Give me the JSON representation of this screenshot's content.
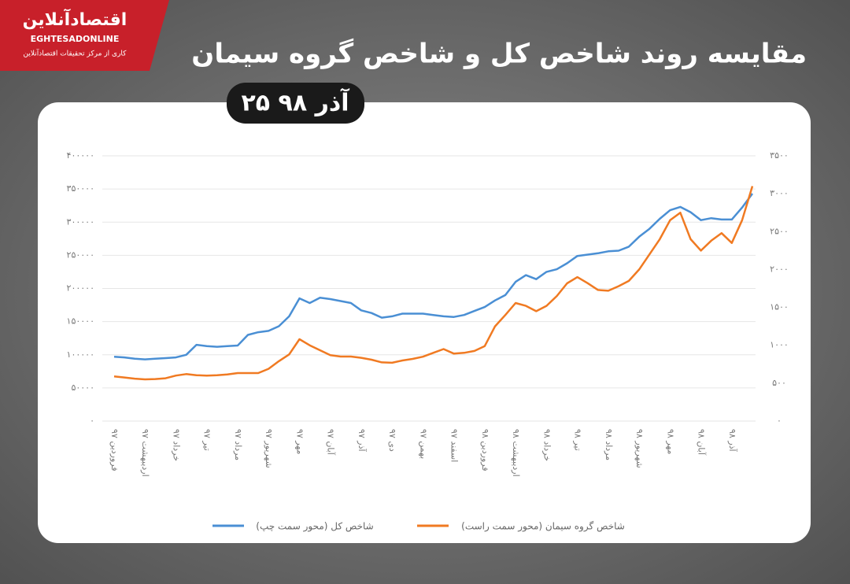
{
  "header": {
    "logo": "اقتصادآنلاین",
    "logo_latin": "EGHTESADONLINE",
    "tagline": "کاری از مرکز تحقیقات اقتصادآنلاین"
  },
  "chart_data": {
    "type": "line",
    "title": "مقایسه روند شاخص کل و شاخص گروه سیمان",
    "subtitle": "۲۵ آذر ۹۸",
    "categories": [
      "فروردین ۹۷",
      null,
      null,
      "اردیبهشت ۹۷",
      null,
      null,
      "خرداد ۹۷",
      null,
      null,
      "تیر ۹۷",
      null,
      null,
      "مرداد ۹۷",
      null,
      null,
      "شهریور ۹۷",
      null,
      null,
      "مهر ۹۷",
      null,
      null,
      "آبان ۹۷",
      null,
      null,
      "آذر ۹۷",
      null,
      null,
      "دی ۹۷",
      null,
      null,
      "بهمن ۹۷",
      null,
      null,
      "اسفند ۹۷",
      null,
      null,
      "فروردین ۹۸",
      null,
      null,
      "اردیبهشت ۹۸",
      null,
      null,
      "خرداد ۹۸",
      null,
      null,
      "تیر ۹۸",
      null,
      null,
      "مرداد ۹۸",
      null,
      null,
      "شهریور ۹۸",
      null,
      null,
      "مهر ۹۸",
      null,
      null,
      "آبان ۹۸",
      null,
      null,
      "آذر ۹۸",
      null,
      null
    ],
    "series": [
      {
        "name": "شاخص کل (محور سمت چپ)",
        "color": "#4a8fd4",
        "values": [
          97000,
          96000,
          94000,
          93000,
          94000,
          95000,
          96000,
          100000,
          115000,
          113000,
          112000,
          113000,
          114000,
          130000,
          134000,
          136000,
          143000,
          158000,
          185000,
          178000,
          186000,
          184000,
          181000,
          178000,
          167000,
          163000,
          156000,
          158000,
          162000,
          162000,
          162000,
          160000,
          158000,
          157000,
          160000,
          166000,
          172000,
          182000,
          190000,
          210000,
          220000,
          214000,
          225000,
          229000,
          238000,
          249000,
          251000,
          253000,
          256000,
          257000,
          263000,
          278000,
          290000,
          305000,
          318000,
          323000,
          315000,
          303000,
          306000,
          304000,
          304000,
          322000,
          343000
        ]
      },
      {
        "name": "شاخص گروه سیمان (محور سمت راست)",
        "color": "#f07a22",
        "axis": "y2",
        "values": [
          590,
          575,
          560,
          550,
          555,
          565,
          600,
          620,
          605,
          600,
          605,
          615,
          634,
          634,
          634,
          690,
          790,
          880,
          1080,
          1000,
          935,
          870,
          852,
          852,
          835,
          810,
          775,
          770,
          800,
          820,
          850,
          900,
          950,
          890,
          900,
          925,
          990,
          1250,
          1400,
          1558,
          1520,
          1450,
          1520,
          1650,
          1817,
          1900,
          1820,
          1730,
          1720,
          1780,
          1850,
          2000,
          2200,
          2400,
          2650,
          2750,
          2400,
          2250,
          2380,
          2480,
          2350,
          2650,
          3100
        ]
      }
    ],
    "ylim": [
      0,
      400000
    ],
    "yticks": [
      {
        "value": 0,
        "label": "۰"
      },
      {
        "value": 50000,
        "label": "۵۰۰۰۰"
      },
      {
        "value": 100000,
        "label": "۱۰۰۰۰۰"
      },
      {
        "value": 150000,
        "label": "۱۵۰۰۰۰"
      },
      {
        "value": 200000,
        "label": "۲۰۰۰۰۰"
      },
      {
        "value": 250000,
        "label": "۲۵۰۰۰۰"
      },
      {
        "value": 300000,
        "label": "۳۰۰۰۰۰"
      },
      {
        "value": 350000,
        "label": "۳۵۰۰۰۰"
      },
      {
        "value": 400000,
        "label": "۴۰۰۰۰۰"
      }
    ],
    "y2lim": [
      0,
      3500
    ],
    "y2ticks": [
      {
        "value": 0,
        "label": "۰"
      },
      {
        "value": 500,
        "label": "۵۰۰"
      },
      {
        "value": 1000,
        "label": "۱۰۰۰"
      },
      {
        "value": 1500,
        "label": "۱۵۰۰"
      },
      {
        "value": 2000,
        "label": "۲۰۰۰"
      },
      {
        "value": 2500,
        "label": "۲۵۰۰"
      },
      {
        "value": 3000,
        "label": "۳۰۰۰"
      },
      {
        "value": 3500,
        "label": "۳۵۰۰"
      }
    ],
    "grid": true
  }
}
